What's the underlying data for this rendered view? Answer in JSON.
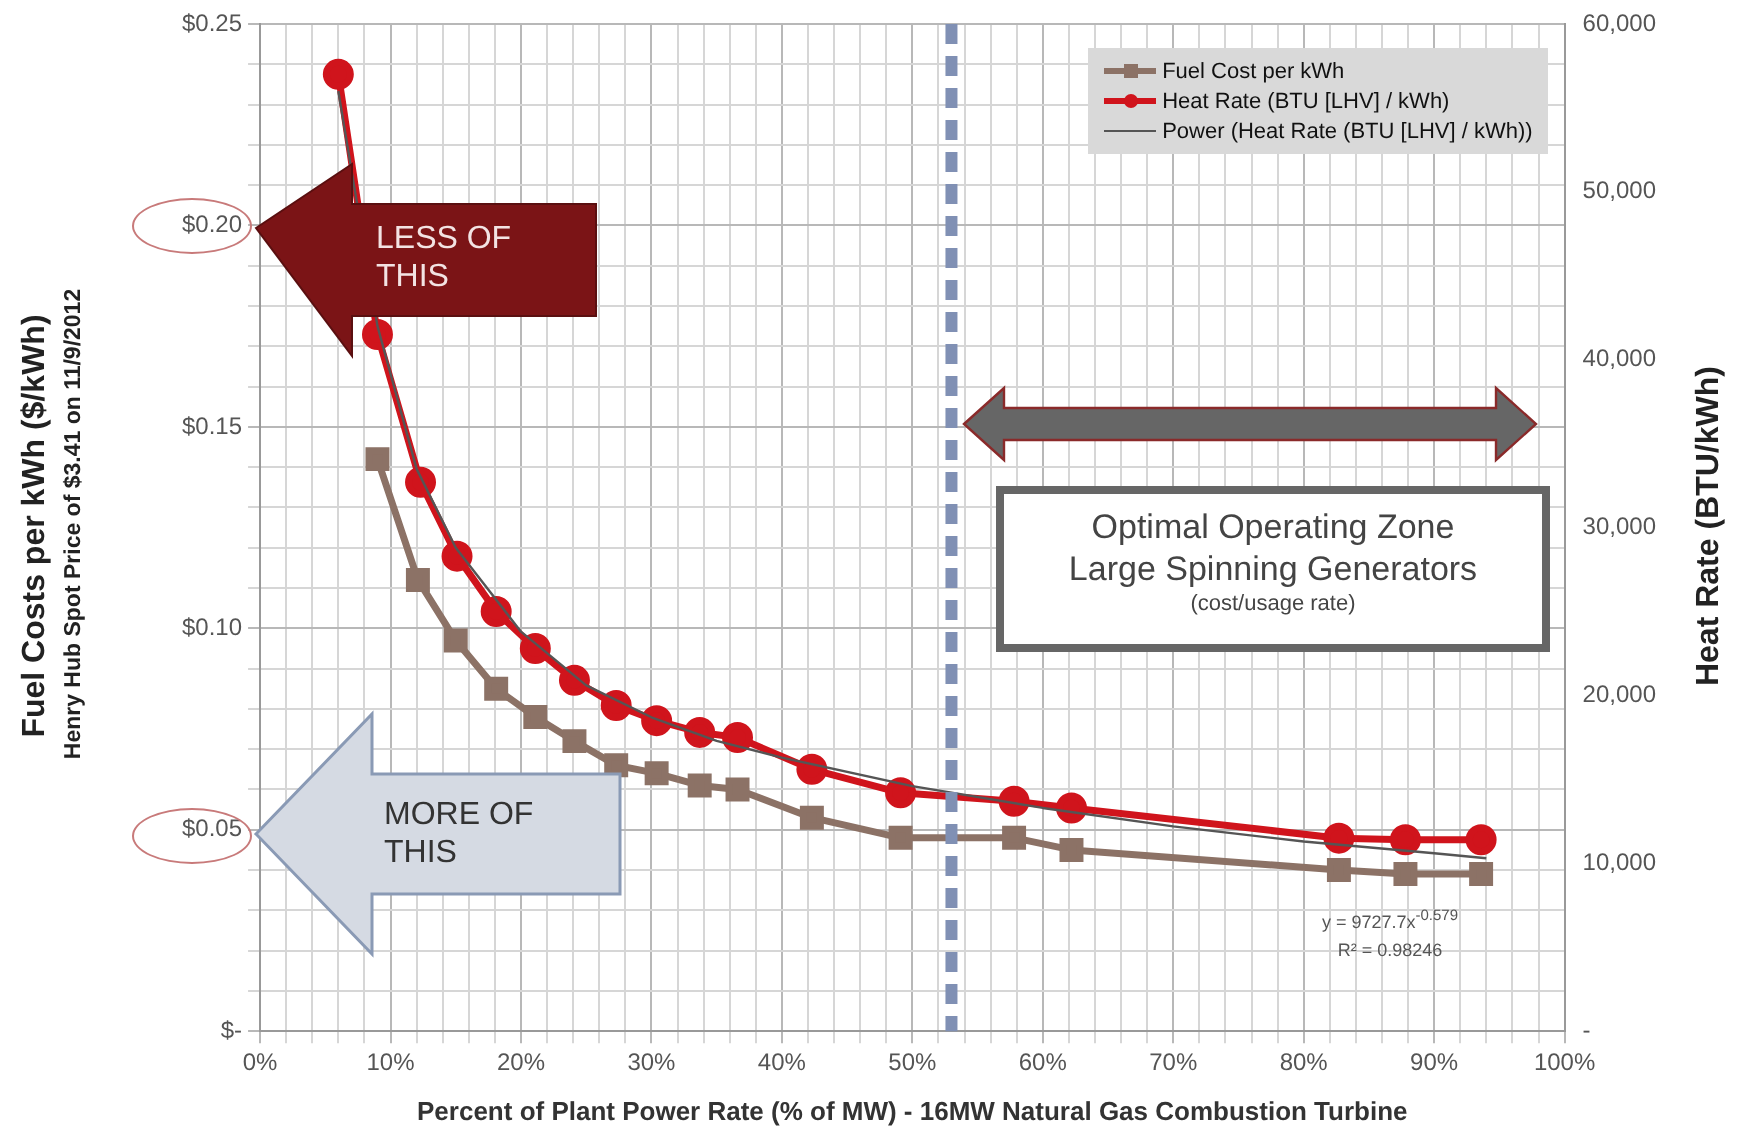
{
  "chart_data": {
    "type": "line",
    "xlabel": "Percent of Plant Power Rate (% of MW) - 16MW Natural Gas Combustion Turbine",
    "ylabel": "Fuel Costs per kWh ($/kWh)",
    "y2label": "Heat Rate (BTU/kWh)",
    "annotations": [
      "LESS OF THIS",
      "MORE OF THIS",
      "Optimal Operating Zone",
      "Large Spinning Generators",
      "(cost/usage rate)",
      "y = 9727.7x$^{-0.579}$",
      "R² = 0.98246",
      "Henry Hub Spot Price of $3.41 on 11/9/2012"
    ],
    "xlim": [
      0,
      100
    ],
    "xticks": [
      {
        "value": 0,
        "label": "0%"
      },
      {
        "value": 2,
        "label": null
      },
      {
        "value": 4,
        "label": null
      },
      {
        "value": 6,
        "label": null
      },
      {
        "value": 8,
        "label": null
      },
      {
        "value": 10,
        "label": "10%"
      },
      {
        "value": 12,
        "label": null
      },
      {
        "value": 14,
        "label": null
      },
      {
        "value": 16,
        "label": null
      },
      {
        "value": 18,
        "label": null
      },
      {
        "value": 20,
        "label": "20%"
      },
      {
        "value": 22,
        "label": null
      },
      {
        "value": 24,
        "label": null
      },
      {
        "value": 26,
        "label": null
      },
      {
        "value": 28,
        "label": null
      },
      {
        "value": 30,
        "label": "30%"
      },
      {
        "value": 32,
        "label": null
      },
      {
        "value": 34,
        "label": null
      },
      {
        "value": 36,
        "label": null
      },
      {
        "value": 38,
        "label": null
      },
      {
        "value": 40,
        "label": "40%"
      },
      {
        "value": 42,
        "label": null
      },
      {
        "value": 44,
        "label": null
      },
      {
        "value": 46,
        "label": null
      },
      {
        "value": 48,
        "label": null
      },
      {
        "value": 50,
        "label": "50%"
      },
      {
        "value": 52,
        "label": null
      },
      {
        "value": 54,
        "label": null
      },
      {
        "value": 56,
        "label": null
      },
      {
        "value": 58,
        "label": null
      },
      {
        "value": 60,
        "label": "60%"
      },
      {
        "value": 62,
        "label": null
      },
      {
        "value": 64,
        "label": null
      },
      {
        "value": 66,
        "label": null
      },
      {
        "value": 68,
        "label": null
      },
      {
        "value": 70,
        "label": "70%"
      },
      {
        "value": 72,
        "label": null
      },
      {
        "value": 74,
        "label": null
      },
      {
        "value": 76,
        "label": null
      },
      {
        "value": 78,
        "label": null
      },
      {
        "value": 80,
        "label": "80%"
      },
      {
        "value": 82,
        "label": null
      },
      {
        "value": 84,
        "label": null
      },
      {
        "value": 86,
        "label": null
      },
      {
        "value": 88,
        "label": null
      },
      {
        "value": 90,
        "label": "90%"
      },
      {
        "value": 92,
        "label": null
      },
      {
        "value": 94,
        "label": null
      },
      {
        "value": 96,
        "label": null
      },
      {
        "value": 98,
        "label": null
      },
      {
        "value": 100,
        "label": "100%"
      }
    ],
    "ylim": [
      0,
      0.25
    ],
    "yticks": [
      {
        "value": 0,
        "label": "$-"
      },
      {
        "value": 0.01,
        "label": null
      },
      {
        "value": 0.02,
        "label": null
      },
      {
        "value": 0.03,
        "label": null
      },
      {
        "value": 0.04,
        "label": null
      },
      {
        "value": 0.05,
        "label": "$0.05"
      },
      {
        "value": 0.06,
        "label": null
      },
      {
        "value": 0.07,
        "label": null
      },
      {
        "value": 0.08,
        "label": null
      },
      {
        "value": 0.09,
        "label": null
      },
      {
        "value": 0.1,
        "label": "$0.10"
      },
      {
        "value": 0.11,
        "label": null
      },
      {
        "value": 0.12,
        "label": null
      },
      {
        "value": 0.13,
        "label": null
      },
      {
        "value": 0.14,
        "label": null
      },
      {
        "value": 0.15,
        "label": "$0.15"
      },
      {
        "value": 0.16,
        "label": null
      },
      {
        "value": 0.17,
        "label": null
      },
      {
        "value": 0.18,
        "label": null
      },
      {
        "value": 0.19,
        "label": null
      },
      {
        "value": 0.2,
        "label": "$0.20"
      },
      {
        "value": 0.21,
        "label": null
      },
      {
        "value": 0.22,
        "label": null
      },
      {
        "value": 0.23,
        "label": null
      },
      {
        "value": 0.24,
        "label": null
      },
      {
        "value": 0.25,
        "label": "$0.25"
      }
    ],
    "y2lim": [
      0,
      60000
    ],
    "y2ticks": [
      {
        "value": 0,
        "label": "-"
      },
      {
        "value": 10000,
        "label": "10,000"
      },
      {
        "value": 20000,
        "label": "20,000"
      },
      {
        "value": 30000,
        "label": "30,000"
      },
      {
        "value": 40000,
        "label": "40,000"
      },
      {
        "value": 50000,
        "label": "50,000"
      },
      {
        "value": 60000,
        "label": "60,000"
      }
    ],
    "grid": true,
    "legend": "top right",
    "series": [
      {
        "name": "Fuel Cost per kWh",
        "color": "#8c7266",
        "marker": "square",
        "x": [
          9,
          12.1,
          15,
          18.1,
          21.1,
          24.1,
          27.3,
          30.4,
          33.7,
          36.6,
          42.3,
          49.1,
          57.8,
          62.2,
          82.7,
          87.8,
          93.6
        ],
        "values": [
          0.142,
          0.112,
          0.097,
          0.085,
          0.078,
          0.072,
          0.066,
          0.064,
          0.061,
          0.06,
          0.053,
          0.048,
          0.048,
          0.045,
          0.04,
          0.039,
          0.039
        ]
      },
      {
        "name": "Heat Rate (BTU [LHV] / kWh)",
        "color": "#d0141c",
        "marker": "circle",
        "axis": "y2",
        "x": [
          6,
          9,
          12.3,
          15.1,
          18.1,
          21.1,
          24.1,
          27.3,
          30.4,
          33.7,
          36.6,
          42.3,
          49.1,
          57.8,
          62.2,
          82.7,
          87.8,
          93.6
        ],
        "values": [
          57000,
          41500,
          32700,
          28300,
          25000,
          22800,
          20900,
          19400,
          18500,
          17800,
          17500,
          15600,
          14200,
          13700,
          13300,
          11500,
          11400,
          11400
        ]
      },
      {
        "name": "Power (Heat Rate (BTU [LHV] / kWh))",
        "color": "#555555",
        "marker": "none",
        "line_style": "solid",
        "axis": "y2",
        "x": [
          6,
          9,
          12,
          15,
          20,
          25,
          30,
          35,
          40,
          50,
          60,
          70,
          80,
          90,
          94
        ],
        "values": [
          56000,
          42000,
          33500,
          28800,
          23800,
          20600,
          18700,
          17300,
          16300,
          14600,
          13300,
          12200,
          11300,
          10600,
          10300
        ]
      }
    ],
    "ref_lines": [
      {
        "axis": "x",
        "value": 53,
        "color": "#8090b4",
        "line_style": "dashed"
      }
    ]
  }
}
